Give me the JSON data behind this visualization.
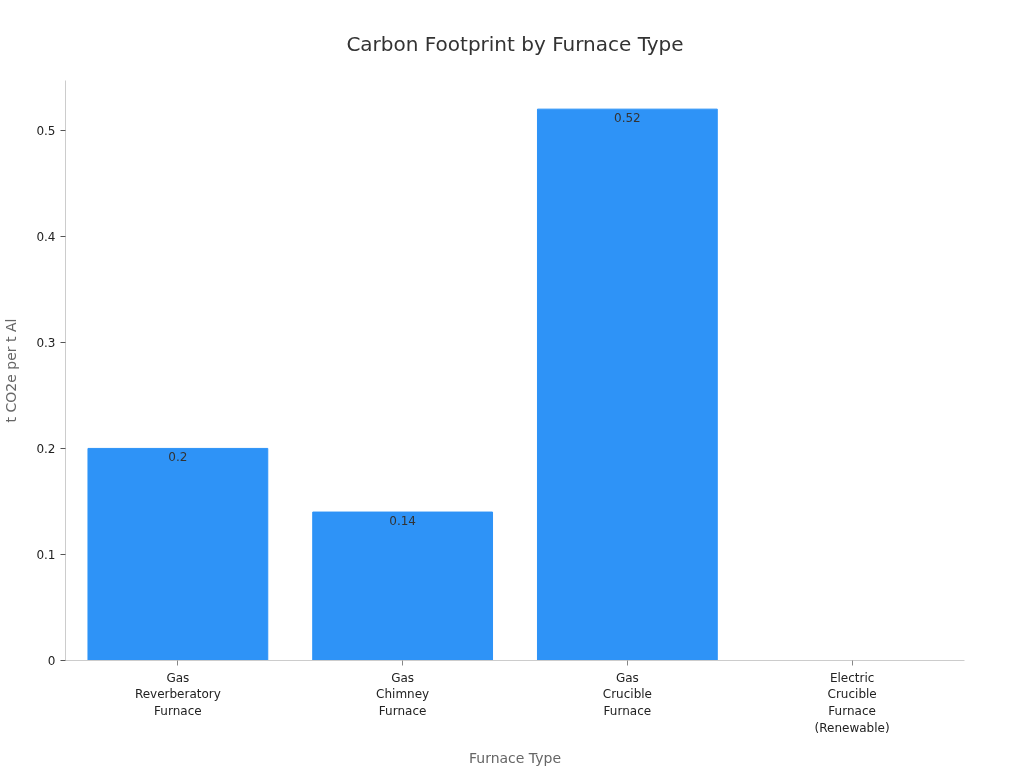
{
  "chart_data": {
    "type": "bar",
    "title": "Carbon Footprint by Furnace Type",
    "xlabel": "Furnace Type",
    "ylabel": "t CO2e per t Al",
    "categories": [
      "Gas Reverberatory Furnace",
      "Gas Chimney Furnace",
      "Gas Crucible Furnace",
      "Electric Crucible Furnace (Renewable)"
    ],
    "values": [
      0.2,
      0.14,
      0.52,
      0
    ],
    "color": "#2e93f7",
    "value_labels": [
      "0.2",
      "0.14",
      "0.52",
      null
    ],
    "ylim": [
      0,
      0.547
    ],
    "yticks": [
      0,
      0.1,
      0.2,
      0.3,
      0.4,
      0.5
    ],
    "grid": false
  }
}
